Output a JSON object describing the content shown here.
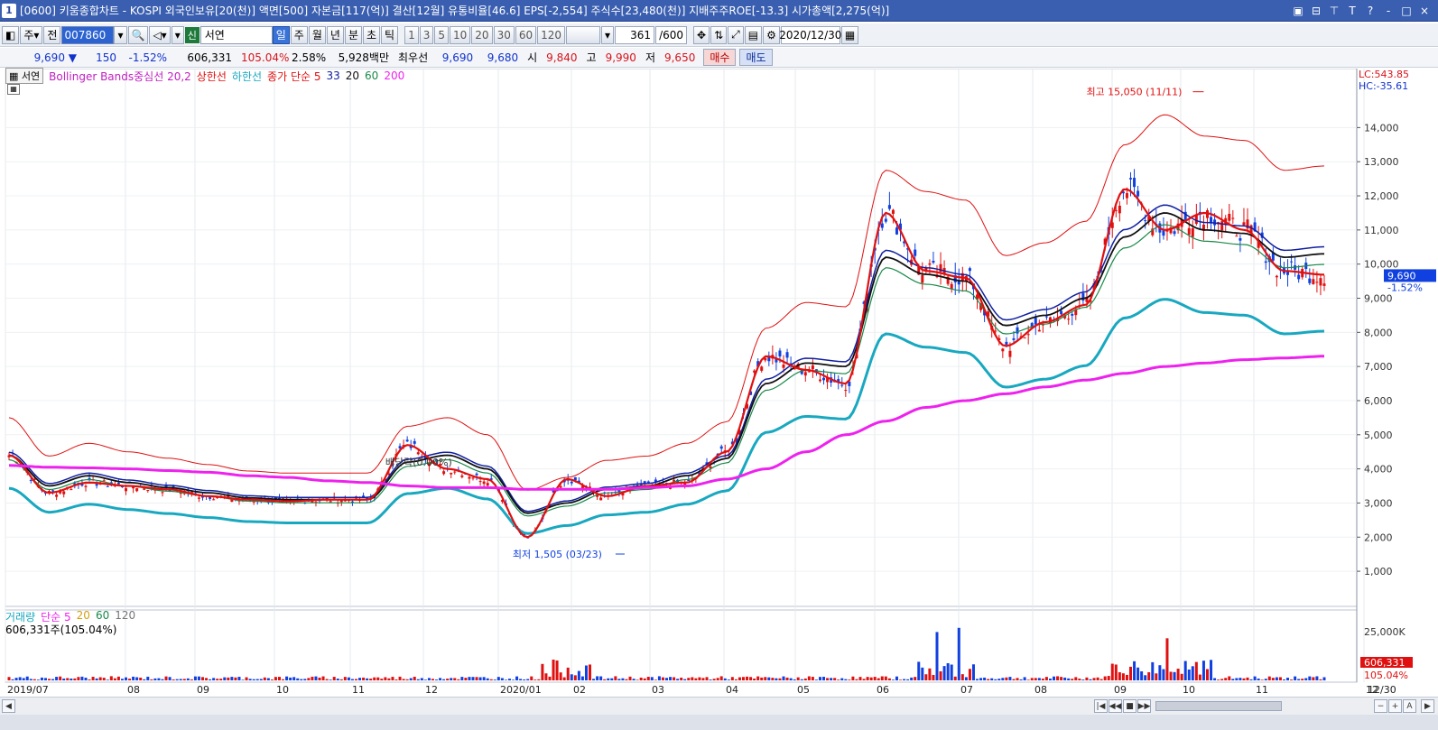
{
  "window": {
    "number": "1",
    "title": "[0600] 키움종합차트 - KOSPI 외국인보유[20(천)] 액면[500] 자본금[117(억)] 결산[12월] 유통비율[46.6] EPS[-2,554] 주식수[23,480(천)] 지배주주ROE[-13.3] 시가총액[2,275(억)]",
    "buttons": [
      "▣",
      "⊟",
      "⊤",
      "T",
      "?",
      "-",
      "□",
      "×"
    ]
  },
  "toolbar": {
    "mode": "주",
    "prev_label": "전",
    "code": "007860",
    "search_icon": "search-icon",
    "name": "서연",
    "name_badge": "신",
    "periods": [
      "일",
      "주",
      "월",
      "년",
      "분",
      "초",
      "틱"
    ],
    "selected_period": "일",
    "minutes": [
      "1",
      "3",
      "5",
      "10",
      "20",
      "30",
      "60",
      "120"
    ],
    "count": "361",
    "count_total": "/600",
    "date": "2020/12/30"
  },
  "quote": {
    "price": "9,690",
    "change": "150",
    "change_pct": "-1.52%",
    "volume": "606,331",
    "vol_ratio": "105.04%",
    "turnover": "2.58%",
    "amount": "5,928백만",
    "best_label": "최우선",
    "best_ask": "9,690",
    "best_bid": "9,680",
    "open_label": "시",
    "open": "9,840",
    "high_label": "고",
    "high": "9,990",
    "low_label": "저",
    "low": "9,650",
    "buy_label": "매수",
    "sell_label": "매도"
  },
  "price_panel": {
    "legend_name": "서연",
    "legend_bb": "Bollinger Bands중심선 20,2",
    "legend_upper": "상한선",
    "legend_lower": "하한선",
    "legend_ma": "종가 단순 5",
    "legend_ma33": "33",
    "legend_ma20": "20",
    "legend_ma60": "60",
    "legend_ma200": "200",
    "lc_label": "LC:543.85",
    "hc_label": "HC:-35.61",
    "high_annotation": "최고 15,050 (11/11)",
    "low_annotation": "최저 1,505 (03/23)",
    "dividend_annotation": "배당락(0.00%)",
    "current_price_tag": "9,690",
    "current_pct_tag": "-1.52%",
    "y_ticks": [
      "14,000",
      "13,000",
      "12,000",
      "11,000",
      "10,000",
      "9,000",
      "8,000",
      "7,000",
      "6,000",
      "5,000",
      "4,000",
      "3,000",
      "2,000",
      "1,000"
    ]
  },
  "volume_panel": {
    "legend_name": "거래량",
    "legend_ma": "단순 5",
    "legend_ma20": "20",
    "legend_ma60": "60",
    "legend_ma120": "120",
    "current_label": "606,331주(105.04%)",
    "tick_25k": "25,000K",
    "vol_tag": "606,331",
    "vol_pct_tag": "105.04%"
  },
  "x_axis": {
    "labels": [
      "2019/07",
      "08",
      "09",
      "10",
      "11",
      "12",
      "2020/01",
      "02",
      "03",
      "04",
      "05",
      "06",
      "07",
      "08",
      "09",
      "10",
      "11",
      "12",
      "12/30"
    ]
  },
  "colors": {
    "up": "#e01010",
    "down": "#1040e0",
    "bb_upper": "#e01010",
    "bb_lower": "#18a8c0",
    "ma5": "#e01010",
    "ma20": "#101010",
    "ma33": "#1020a0",
    "ma60": "#1a8a4a",
    "ma200": "#ee22ee"
  },
  "chart_data": {
    "type": "line",
    "title": "",
    "series": [
      {
        "name": "종가 단순 5",
        "values": [
          4400,
          3300,
          3600,
          3500,
          3400,
          3200,
          3100,
          3050,
          3100,
          3100,
          4700,
          4000,
          3700,
          2000,
          3700,
          3200,
          3500,
          3600,
          4500,
          7300,
          6900,
          6500,
          11500,
          9800,
          9600,
          7600,
          8300,
          8800,
          12200,
          11000,
          11500,
          11000,
          9800,
          9690
        ]
      },
      {
        "name": "20",
        "values": [
          4400,
          3500,
          3800,
          3600,
          3450,
          3300,
          3150,
          3100,
          3100,
          3100,
          4200,
          4400,
          4000,
          2700,
          3000,
          3400,
          3500,
          3800,
          4300,
          6500,
          7100,
          7000,
          10200,
          9700,
          9500,
          8200,
          8500,
          9000,
          10800,
          11500,
          11000,
          10900,
          10200,
          10300
        ]
      },
      {
        "name": "200",
        "values": [
          4100,
          4050,
          4030,
          4000,
          3950,
          3900,
          3800,
          3750,
          3650,
          3600,
          3500,
          3450,
          3450,
          3400,
          3400,
          3400,
          3450,
          3500,
          3700,
          4000,
          4500,
          5000,
          5400,
          5800,
          6000,
          6200,
          6400,
          6600,
          6800,
          7000,
          7100,
          7200,
          7250,
          7300
        ]
      }
    ],
    "high": 15050,
    "high_date": "11/11",
    "low": 1505,
    "low_date": "03/23",
    "ylim": [
      500,
      15200
    ],
    "grid": true,
    "legend_position": "top-left"
  }
}
